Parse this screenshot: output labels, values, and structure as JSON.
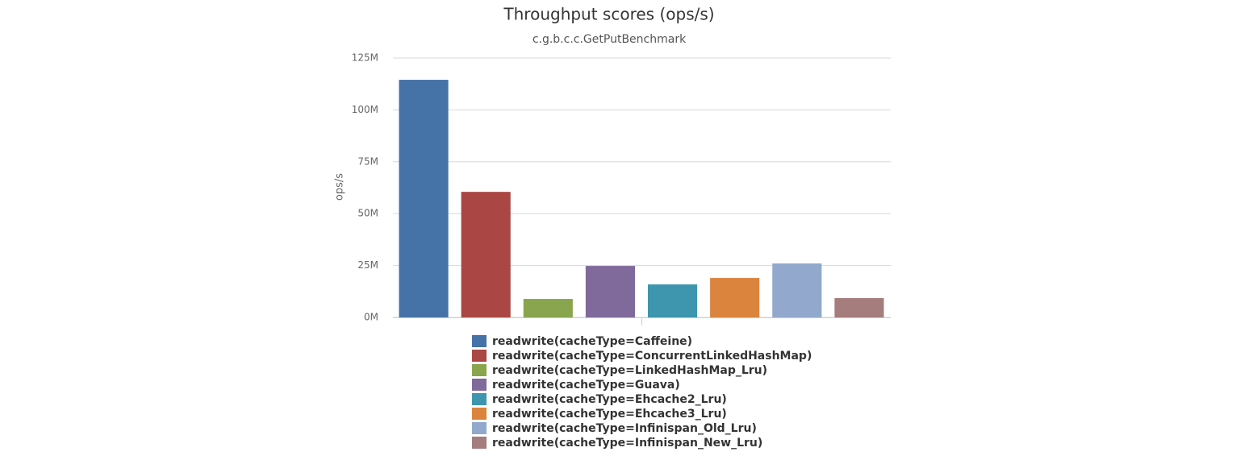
{
  "chart_data": {
    "type": "bar",
    "title": "Throughput scores (ops/s)",
    "subtitle": "c.g.b.c.c.GetPutBenchmark",
    "y_label": "ops/s",
    "categories": [
      null
    ],
    "series": [
      {
        "name": "readwrite(cacheType=Caffeine)",
        "color": "#4572a7",
        "values": [
          114500000
        ]
      },
      {
        "name": "readwrite(cacheType=ConcurrentLinkedHashMap)",
        "color": "#aa4643",
        "values": [
          60500000
        ]
      },
      {
        "name": "readwrite(cacheType=LinkedHashMap_Lru)",
        "color": "#89a54e",
        "values": [
          8900000
        ]
      },
      {
        "name": "readwrite(cacheType=Guava)",
        "color": "#80699b",
        "values": [
          24800000
        ]
      },
      {
        "name": "readwrite(cacheType=Ehcache2_Lru)",
        "color": "#3d96ae",
        "values": [
          15900000
        ]
      },
      {
        "name": "readwrite(cacheType=Ehcache3_Lru)",
        "color": "#db843d",
        "values": [
          19000000
        ]
      },
      {
        "name": "readwrite(cacheType=Infinispan_Old_Lru)",
        "color": "#92a8cd",
        "values": [
          26000000
        ]
      },
      {
        "name": "readwrite(cacheType=Infinispan_New_Lru)",
        "color": "#a47d7c",
        "values": [
          9300000
        ]
      }
    ],
    "ylim": [
      0,
      125000000
    ],
    "yticks": [
      {
        "value": 0,
        "label": "0M"
      },
      {
        "value": 25000000,
        "label": "25M"
      },
      {
        "value": 50000000,
        "label": "50M"
      },
      {
        "value": 75000000,
        "label": "75M"
      },
      {
        "value": 100000000,
        "label": "100M"
      },
      {
        "value": 125000000,
        "label": "125M"
      }
    ],
    "grid": true,
    "legend": "bottom"
  }
}
